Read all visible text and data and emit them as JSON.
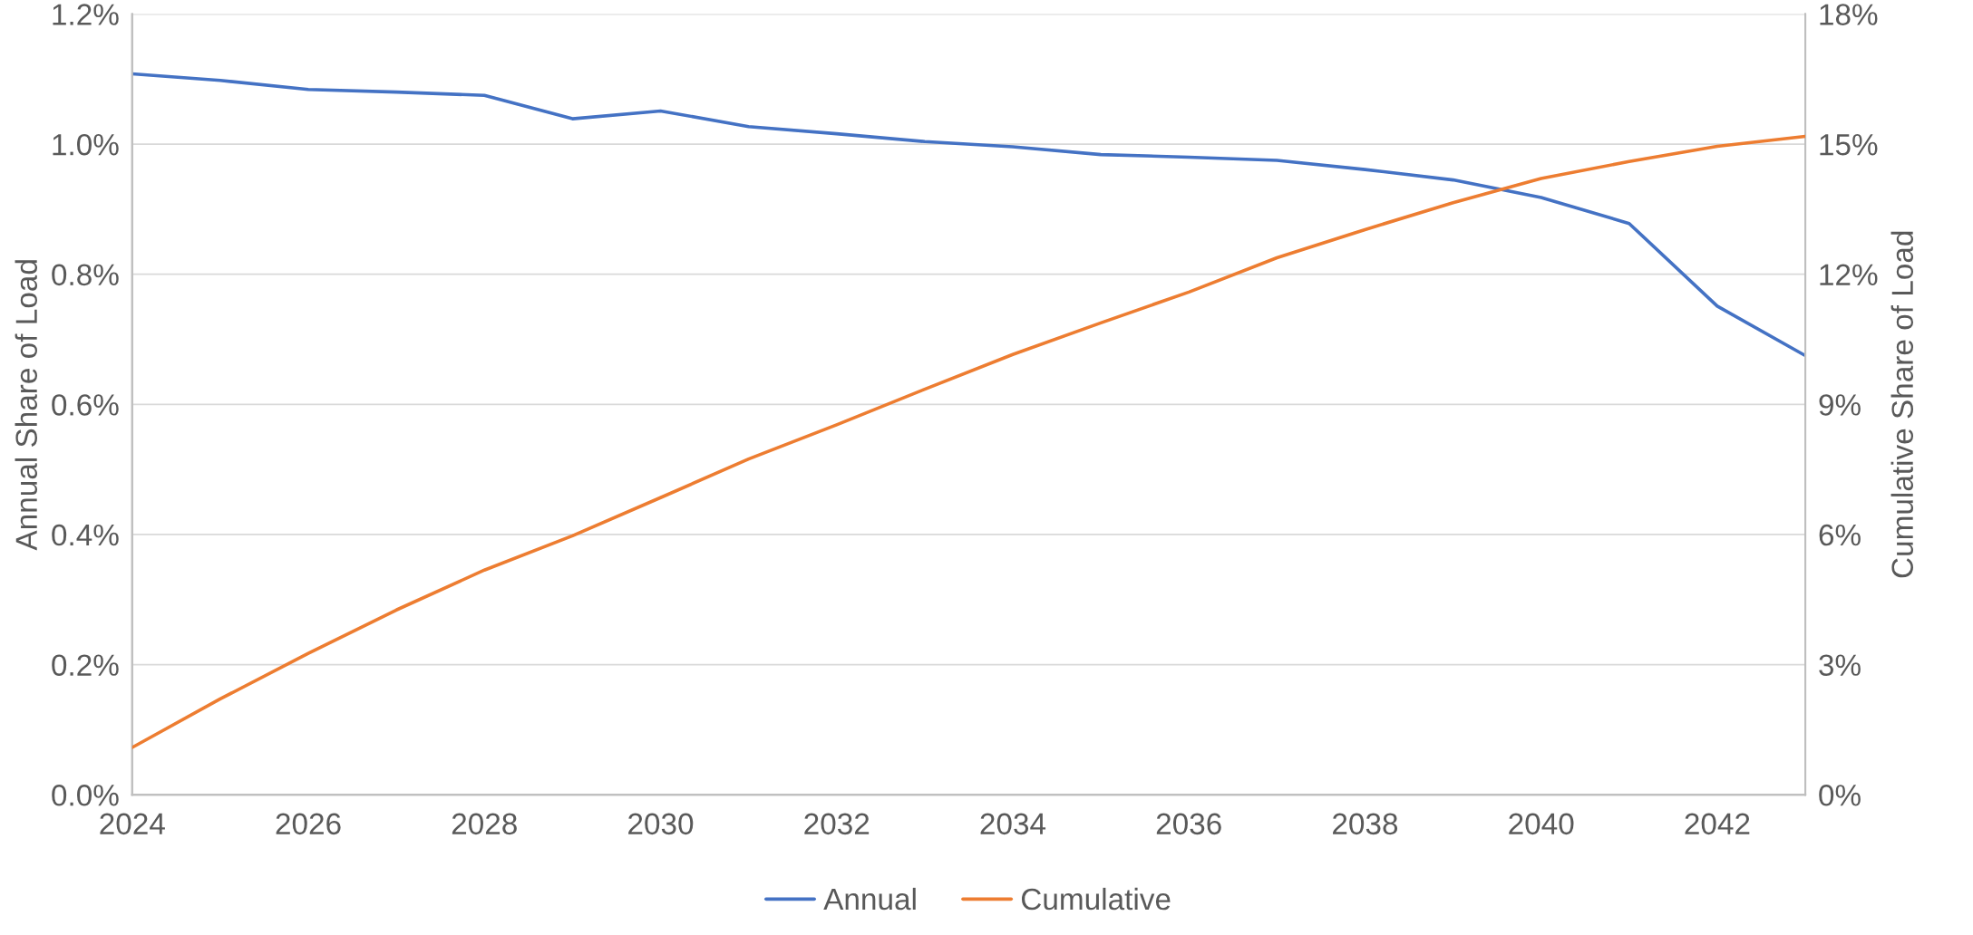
{
  "chart_data": {
    "type": "line",
    "xlabel": null,
    "ylabel": "Annual Share of Load",
    "y2label": "Cumulative Share of Load",
    "x": [
      2024,
      2025,
      2026,
      2027,
      2028,
      2029,
      2030,
      2031,
      2032,
      2033,
      2034,
      2035,
      2036,
      2037,
      2038,
      2039,
      2040,
      2041,
      2042,
      2043
    ],
    "series": [
      {
        "name": "Annual",
        "color": "#4472c4",
        "values": [
          1.108,
          1.098,
          1.084,
          1.08,
          1.075,
          1.039,
          1.051,
          1.027,
          1.016,
          1.004,
          0.996,
          0.984,
          0.98,
          0.975,
          0.961,
          0.945,
          0.918,
          0.878,
          0.751,
          0.675
        ]
      },
      {
        "name": "Cumulative",
        "color": "#ed7d31",
        "axis": "y2",
        "values": [
          1.09,
          2.21,
          3.26,
          4.26,
          5.18,
          5.97,
          6.85,
          7.74,
          8.53,
          9.35,
          10.15,
          10.88,
          11.59,
          12.38,
          13.03,
          13.65,
          14.21,
          14.6,
          14.95,
          15.18
        ]
      }
    ],
    "xlim": [
      2024,
      2043
    ],
    "xticks": [
      2024,
      2026,
      2028,
      2030,
      2032,
      2034,
      2036,
      2038,
      2040,
      2042
    ],
    "ylim": [
      0,
      1.2
    ],
    "yticks": [
      {
        "value": 0,
        "label": "0.0%"
      },
      {
        "value": 0.2,
        "label": "0.2%"
      },
      {
        "value": 0.4,
        "label": "0.4%"
      },
      {
        "value": 0.6,
        "label": "0.6%"
      },
      {
        "value": 0.8,
        "label": "0.8%"
      },
      {
        "value": 1.0,
        "label": "1.0%"
      },
      {
        "value": 1.2,
        "label": "1.2%"
      }
    ],
    "y2lim": [
      0,
      18
    ],
    "y2ticks": [
      {
        "value": 0,
        "label": "0%"
      },
      {
        "value": 3,
        "label": "3%"
      },
      {
        "value": 6,
        "label": "6%"
      },
      {
        "value": 9,
        "label": "9%"
      },
      {
        "value": 12,
        "label": "12%"
      },
      {
        "value": 15,
        "label": "15%"
      },
      {
        "value": 18,
        "label": "18%"
      }
    ],
    "grid": "y",
    "legend": "bottom",
    "marker": "none",
    "line_style": "solid"
  }
}
